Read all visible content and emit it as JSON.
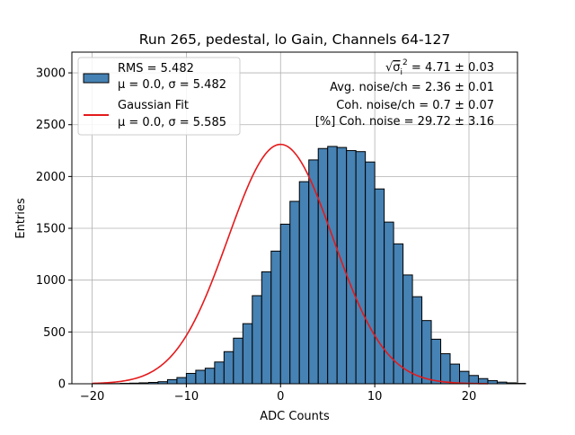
{
  "chart_data": {
    "type": "bar",
    "title": "Run 265, pedestal, lo Gain, Channels 64-127",
    "xlabel": "ADC Counts",
    "ylabel": "Entries",
    "xlim": [
      -22.15,
      25.15
    ],
    "ylim": [
      0,
      3200
    ],
    "xticks": [
      -20,
      -10,
      0,
      10,
      20
    ],
    "xtick_labels": [
      "−20",
      "−10",
      "0",
      "10",
      "20"
    ],
    "yticks": [
      0,
      500,
      1000,
      1500,
      2000,
      2500,
      3000
    ],
    "ytick_labels": [
      "0",
      "500",
      "1000",
      "1500",
      "2000",
      "2500",
      "3000"
    ],
    "grid": true,
    "bin_width": 1,
    "bin_edges_start": -20,
    "histogram": {
      "name": "RMS = 5.482",
      "legend_line2": "μ = 0.0, σ = 5.482",
      "color": "#4682b4",
      "edgecolor": "#000000",
      "values": [
        0,
        1,
        2,
        4,
        6,
        9,
        13,
        20,
        40,
        60,
        100,
        130,
        150,
        210,
        310,
        440,
        580,
        850,
        1080,
        1280,
        1540,
        1760,
        1950,
        2160,
        2270,
        2290,
        2280,
        2250,
        2240,
        2140,
        1880,
        1560,
        1350,
        1050,
        840,
        610,
        430,
        290,
        190,
        120,
        80,
        50,
        30,
        16,
        9,
        4
      ]
    },
    "fit": {
      "name": "Gaussian Fit",
      "legend_line2": "μ = 0.0, σ = 5.585",
      "color": "#e41a1c",
      "mu": 0.0,
      "sigma": 5.585,
      "amplitude": 2310,
      "x_range": [
        -20,
        22
      ]
    },
    "legend_location": "upper-left",
    "annotations": [
      {
        "prefix": "√",
        "symbol": "σ",
        "sub": "i",
        "sup": "2",
        "rest": " = 4.71 ± 0.03"
      },
      {
        "text": "Avg. noise/ch = 2.36 ± 0.01"
      },
      {
        "text": "Coh. noise/ch = 0.7 ± 0.07"
      },
      {
        "text": "[%] Coh. noise = 29.72 ± 3.16"
      }
    ]
  }
}
